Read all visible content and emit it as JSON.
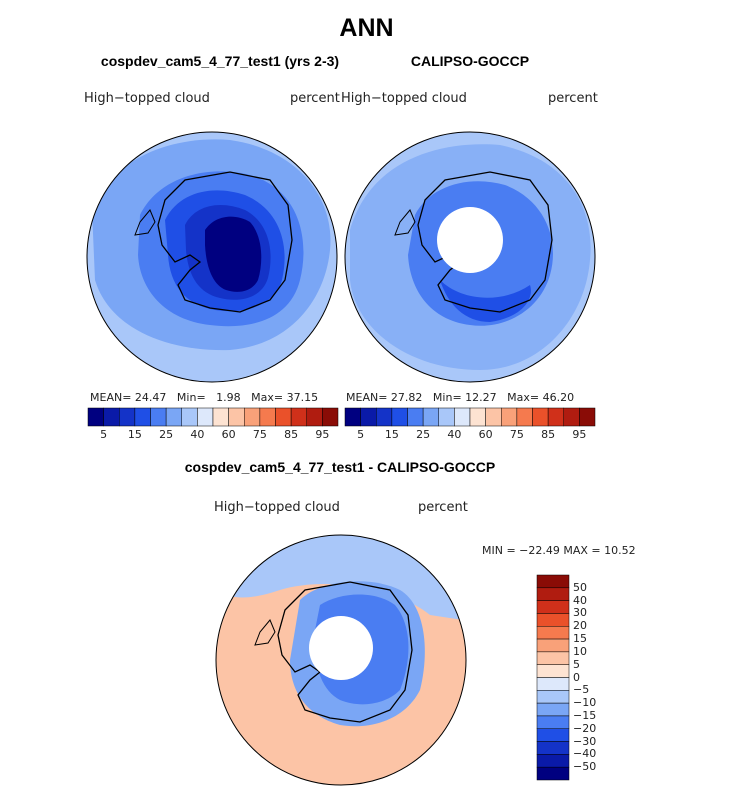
{
  "title": "ANN",
  "panels": [
    {
      "title": "cospdev_cam5_4_77_test1 (yrs 2-3)",
      "left_label": "High−topped cloud",
      "right_label": "percent",
      "stats": {
        "mean_label": "MEAN=",
        "mean": "24.47",
        "min_label": "Min=",
        "min": "1.98",
        "max_label": "Max=",
        "max": "37.15"
      }
    },
    {
      "title": "CALIPSO-GOCCP",
      "left_label": "High−topped cloud",
      "right_label": "percent",
      "stats": {
        "mean_label": "MEAN=",
        "mean": "27.82",
        "min_label": "Min=",
        "min": "12.27",
        "max_label": "Max=",
        "max": "46.20"
      }
    }
  ],
  "diff_panel": {
    "title": "cospdev_cam5_4_77_test1 - CALIPSO-GOCCP",
    "left_label": "High−topped cloud",
    "right_label": "percent",
    "minmax": "MIN = −22.49 MAX =  10.52"
  },
  "colorbar_abs": {
    "colors": [
      "#000080",
      "#0a1aa8",
      "#1433c8",
      "#1f4fe6",
      "#4a7df2",
      "#7aa6f5",
      "#a9c7f9",
      "#dde8fb",
      "#fde3d2",
      "#fcc4a6",
      "#f9a179",
      "#f57a4e",
      "#ea512a",
      "#d0301a",
      "#b01c10",
      "#8a0c06"
    ],
    "tick_labels": [
      "5",
      "15",
      "25",
      "40",
      "60",
      "75",
      "85",
      "95"
    ]
  },
  "colorbar_diff": {
    "colors": [
      "#8a0c06",
      "#b01c10",
      "#d0301a",
      "#ea512a",
      "#f57a4e",
      "#f9a179",
      "#fcc4a6",
      "#fde3d2",
      "#dde8fb",
      "#a9c7f9",
      "#7aa6f5",
      "#4a7df2",
      "#1f4fe6",
      "#1433c8",
      "#0a1aa8",
      "#000080"
    ],
    "tick_labels": [
      "50",
      "40",
      "30",
      "20",
      "15",
      "10",
      "5",
      "0",
      "−5",
      "−10",
      "−15",
      "−20",
      "−30",
      "−40",
      "−50"
    ]
  }
}
